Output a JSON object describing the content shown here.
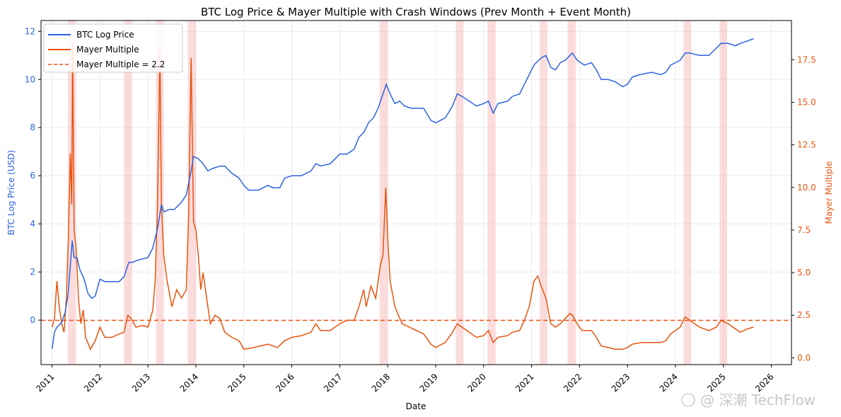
{
  "chart_data": {
    "type": "line",
    "title": "BTC Log Price & Mayer Multiple with Crash Windows (Prev Month + Event Month)",
    "xlabel": "Date",
    "ylabel_left": "BTC Log Price (USD)",
    "ylabel_right": "Mayer Multiple",
    "x_ticks": [
      "2011",
      "2012",
      "2013",
      "2014",
      "2015",
      "2016",
      "2017",
      "2018",
      "2019",
      "2020",
      "2021",
      "2022",
      "2023",
      "2024",
      "2025",
      "2026"
    ],
    "y_ticks_left": [
      "0",
      "2",
      "4",
      "6",
      "8",
      "10",
      "12"
    ],
    "y_ticks_right": [
      "0.0",
      "2.5",
      "5.0",
      "7.5",
      "10.0",
      "12.5",
      "15.0",
      "17.5"
    ],
    "xlim": [
      2010.77,
      2026.42
    ],
    "ylim_left": [
      -1.85,
      12.45
    ],
    "ylim_right": [
      -0.4,
      19.8
    ],
    "grid": true,
    "legend_position": "top-left",
    "colors": {
      "price": "#2c63e0",
      "mayer": "#e8540f",
      "threshold": "#e8540f",
      "crash_window": "#f4a6a6"
    },
    "legend": [
      {
        "label": "BTC Log Price",
        "style": "solid",
        "color": "#2c63e0"
      },
      {
        "label": "Mayer Multiple",
        "style": "solid",
        "color": "#e8540f"
      },
      {
        "label": "Mayer Multiple = 2.2",
        "style": "dashed",
        "color": "#e8540f"
      }
    ],
    "threshold_value": 2.2,
    "crash_windows": [
      [
        2011.33,
        2011.5
      ],
      [
        2012.5,
        2012.67
      ],
      [
        2013.17,
        2013.33
      ],
      [
        2013.83,
        2014.0
      ],
      [
        2017.83,
        2018.0
      ],
      [
        2019.42,
        2019.58
      ],
      [
        2020.08,
        2020.25
      ],
      [
        2021.17,
        2021.33
      ],
      [
        2021.75,
        2021.92
      ],
      [
        2024.17,
        2024.33
      ],
      [
        2024.92,
        2025.08
      ]
    ],
    "series": [
      {
        "name": "BTC Log Price",
        "axis": "left",
        "points": [
          [
            2011.0,
            -1.2
          ],
          [
            2011.05,
            -0.5
          ],
          [
            2011.1,
            -0.3
          ],
          [
            2011.2,
            -0.1
          ],
          [
            2011.27,
            0.3
          ],
          [
            2011.33,
            1.0
          ],
          [
            2011.37,
            2.0
          ],
          [
            2011.42,
            3.3
          ],
          [
            2011.46,
            2.6
          ],
          [
            2011.52,
            2.6
          ],
          [
            2011.58,
            2.1
          ],
          [
            2011.67,
            1.7
          ],
          [
            2011.75,
            1.1
          ],
          [
            2011.83,
            0.9
          ],
          [
            2011.9,
            1.0
          ],
          [
            2012.0,
            1.7
          ],
          [
            2012.1,
            1.6
          ],
          [
            2012.25,
            1.6
          ],
          [
            2012.4,
            1.6
          ],
          [
            2012.5,
            1.8
          ],
          [
            2012.6,
            2.4
          ],
          [
            2012.67,
            2.4
          ],
          [
            2012.8,
            2.5
          ],
          [
            2013.0,
            2.6
          ],
          [
            2013.1,
            3.0
          ],
          [
            2013.2,
            3.8
          ],
          [
            2013.28,
            4.8
          ],
          [
            2013.33,
            4.5
          ],
          [
            2013.45,
            4.6
          ],
          [
            2013.55,
            4.6
          ],
          [
            2013.7,
            4.9
          ],
          [
            2013.8,
            5.2
          ],
          [
            2013.9,
            6.2
          ],
          [
            2013.95,
            6.8
          ],
          [
            2014.05,
            6.7
          ],
          [
            2014.15,
            6.5
          ],
          [
            2014.25,
            6.2
          ],
          [
            2014.35,
            6.3
          ],
          [
            2014.5,
            6.4
          ],
          [
            2014.6,
            6.4
          ],
          [
            2014.75,
            6.1
          ],
          [
            2014.9,
            5.9
          ],
          [
            2015.0,
            5.6
          ],
          [
            2015.1,
            5.4
          ],
          [
            2015.3,
            5.4
          ],
          [
            2015.5,
            5.6
          ],
          [
            2015.6,
            5.5
          ],
          [
            2015.75,
            5.5
          ],
          [
            2015.85,
            5.9
          ],
          [
            2016.0,
            6.0
          ],
          [
            2016.2,
            6.0
          ],
          [
            2016.4,
            6.2
          ],
          [
            2016.5,
            6.5
          ],
          [
            2016.6,
            6.4
          ],
          [
            2016.8,
            6.5
          ],
          [
            2017.0,
            6.9
          ],
          [
            2017.15,
            6.9
          ],
          [
            2017.3,
            7.1
          ],
          [
            2017.4,
            7.6
          ],
          [
            2017.5,
            7.8
          ],
          [
            2017.6,
            8.2
          ],
          [
            2017.7,
            8.4
          ],
          [
            2017.8,
            8.8
          ],
          [
            2017.9,
            9.4
          ],
          [
            2017.97,
            9.8
          ],
          [
            2018.05,
            9.4
          ],
          [
            2018.15,
            9.0
          ],
          [
            2018.25,
            9.1
          ],
          [
            2018.35,
            8.9
          ],
          [
            2018.5,
            8.8
          ],
          [
            2018.6,
            8.8
          ],
          [
            2018.75,
            8.8
          ],
          [
            2018.9,
            8.3
          ],
          [
            2019.0,
            8.2
          ],
          [
            2019.2,
            8.4
          ],
          [
            2019.35,
            8.9
          ],
          [
            2019.45,
            9.4
          ],
          [
            2019.55,
            9.3
          ],
          [
            2019.7,
            9.1
          ],
          [
            2019.85,
            8.9
          ],
          [
            2020.0,
            9.0
          ],
          [
            2020.1,
            9.1
          ],
          [
            2020.2,
            8.6
          ],
          [
            2020.3,
            9.0
          ],
          [
            2020.5,
            9.1
          ],
          [
            2020.6,
            9.3
          ],
          [
            2020.75,
            9.4
          ],
          [
            2020.85,
            9.8
          ],
          [
            2020.95,
            10.2
          ],
          [
            2021.05,
            10.6
          ],
          [
            2021.2,
            10.9
          ],
          [
            2021.3,
            11.0
          ],
          [
            2021.4,
            10.5
          ],
          [
            2021.5,
            10.4
          ],
          [
            2021.6,
            10.7
          ],
          [
            2021.7,
            10.8
          ],
          [
            2021.8,
            11.0
          ],
          [
            2021.85,
            11.1
          ],
          [
            2021.95,
            10.8
          ],
          [
            2022.1,
            10.6
          ],
          [
            2022.25,
            10.7
          ],
          [
            2022.35,
            10.4
          ],
          [
            2022.45,
            10.0
          ],
          [
            2022.6,
            10.0
          ],
          [
            2022.75,
            9.9
          ],
          [
            2022.9,
            9.7
          ],
          [
            2023.0,
            9.8
          ],
          [
            2023.1,
            10.1
          ],
          [
            2023.25,
            10.2
          ],
          [
            2023.5,
            10.3
          ],
          [
            2023.7,
            10.2
          ],
          [
            2023.8,
            10.3
          ],
          [
            2023.9,
            10.6
          ],
          [
            2024.0,
            10.7
          ],
          [
            2024.1,
            10.8
          ],
          [
            2024.2,
            11.1
          ],
          [
            2024.3,
            11.1
          ],
          [
            2024.5,
            11.0
          ],
          [
            2024.7,
            11.0
          ],
          [
            2024.85,
            11.3
          ],
          [
            2024.95,
            11.5
          ],
          [
            2025.1,
            11.5
          ],
          [
            2025.25,
            11.4
          ],
          [
            2025.35,
            11.5
          ],
          [
            2025.5,
            11.6
          ],
          [
            2025.63,
            11.7
          ]
        ]
      },
      {
        "name": "Mayer Multiple",
        "axis": "right",
        "points": [
          [
            2011.0,
            1.8
          ],
          [
            2011.05,
            2.3
          ],
          [
            2011.1,
            4.5
          ],
          [
            2011.15,
            3.0
          ],
          [
            2011.2,
            2.0
          ],
          [
            2011.25,
            1.5
          ],
          [
            2011.3,
            3.5
          ],
          [
            2011.34,
            7.0
          ],
          [
            2011.38,
            12.0
          ],
          [
            2011.41,
            9.0
          ],
          [
            2011.43,
            18.5
          ],
          [
            2011.46,
            7.5
          ],
          [
            2011.5,
            6.5
          ],
          [
            2011.55,
            3.5
          ],
          [
            2011.6,
            2.0
          ],
          [
            2011.65,
            2.8
          ],
          [
            2011.7,
            1.2
          ],
          [
            2011.8,
            0.5
          ],
          [
            2011.9,
            1.0
          ],
          [
            2012.0,
            1.8
          ],
          [
            2012.1,
            1.2
          ],
          [
            2012.25,
            1.2
          ],
          [
            2012.4,
            1.4
          ],
          [
            2012.5,
            1.5
          ],
          [
            2012.58,
            2.5
          ],
          [
            2012.65,
            2.3
          ],
          [
            2012.75,
            1.8
          ],
          [
            2012.9,
            1.9
          ],
          [
            2013.0,
            1.8
          ],
          [
            2013.1,
            2.8
          ],
          [
            2013.15,
            4.5
          ],
          [
            2013.2,
            9.0
          ],
          [
            2013.25,
            18.0
          ],
          [
            2013.28,
            9.0
          ],
          [
            2013.33,
            6.0
          ],
          [
            2013.4,
            4.5
          ],
          [
            2013.5,
            3.0
          ],
          [
            2013.6,
            4.0
          ],
          [
            2013.7,
            3.5
          ],
          [
            2013.8,
            4.0
          ],
          [
            2013.85,
            8.5
          ],
          [
            2013.9,
            17.6
          ],
          [
            2013.95,
            8.0
          ],
          [
            2014.0,
            7.5
          ],
          [
            2014.05,
            6.0
          ],
          [
            2014.1,
            4.0
          ],
          [
            2014.15,
            5.0
          ],
          [
            2014.25,
            3.0
          ],
          [
            2014.3,
            2.0
          ],
          [
            2014.4,
            2.5
          ],
          [
            2014.5,
            2.3
          ],
          [
            2014.6,
            1.5
          ],
          [
            2014.75,
            1.2
          ],
          [
            2014.9,
            1.0
          ],
          [
            2015.0,
            0.5
          ],
          [
            2015.2,
            0.6
          ],
          [
            2015.5,
            0.8
          ],
          [
            2015.7,
            0.6
          ],
          [
            2015.85,
            1.0
          ],
          [
            2016.0,
            1.2
          ],
          [
            2016.2,
            1.3
          ],
          [
            2016.4,
            1.5
          ],
          [
            2016.5,
            2.0
          ],
          [
            2016.6,
            1.6
          ],
          [
            2016.8,
            1.6
          ],
          [
            2017.0,
            2.0
          ],
          [
            2017.15,
            2.2
          ],
          [
            2017.3,
            2.2
          ],
          [
            2017.4,
            3.0
          ],
          [
            2017.5,
            4.0
          ],
          [
            2017.55,
            3.0
          ],
          [
            2017.65,
            4.2
          ],
          [
            2017.75,
            3.5
          ],
          [
            2017.85,
            5.5
          ],
          [
            2017.9,
            6.0
          ],
          [
            2017.96,
            10.0
          ],
          [
            2018.0,
            7.0
          ],
          [
            2018.05,
            4.5
          ],
          [
            2018.15,
            3.0
          ],
          [
            2018.3,
            2.0
          ],
          [
            2018.45,
            1.8
          ],
          [
            2018.6,
            1.6
          ],
          [
            2018.75,
            1.4
          ],
          [
            2018.9,
            0.8
          ],
          [
            2019.0,
            0.6
          ],
          [
            2019.2,
            0.9
          ],
          [
            2019.35,
            1.5
          ],
          [
            2019.45,
            2.0
          ],
          [
            2019.55,
            1.8
          ],
          [
            2019.7,
            1.5
          ],
          [
            2019.85,
            1.2
          ],
          [
            2020.0,
            1.3
          ],
          [
            2020.1,
            1.6
          ],
          [
            2020.2,
            0.9
          ],
          [
            2020.3,
            1.2
          ],
          [
            2020.5,
            1.3
          ],
          [
            2020.6,
            1.5
          ],
          [
            2020.75,
            1.6
          ],
          [
            2020.85,
            2.2
          ],
          [
            2020.95,
            3.0
          ],
          [
            2021.05,
            4.5
          ],
          [
            2021.13,
            4.8
          ],
          [
            2021.2,
            4.2
          ],
          [
            2021.3,
            3.5
          ],
          [
            2021.4,
            2.0
          ],
          [
            2021.5,
            1.8
          ],
          [
            2021.6,
            2.0
          ],
          [
            2021.7,
            2.3
          ],
          [
            2021.8,
            2.6
          ],
          [
            2021.85,
            2.5
          ],
          [
            2021.95,
            2.0
          ],
          [
            2022.05,
            1.6
          ],
          [
            2022.25,
            1.6
          ],
          [
            2022.35,
            1.2
          ],
          [
            2022.45,
            0.7
          ],
          [
            2022.6,
            0.6
          ],
          [
            2022.75,
            0.5
          ],
          [
            2022.9,
            0.5
          ],
          [
            2023.0,
            0.6
          ],
          [
            2023.1,
            0.8
          ],
          [
            2023.3,
            0.9
          ],
          [
            2023.5,
            0.9
          ],
          [
            2023.7,
            0.9
          ],
          [
            2023.8,
            1.0
          ],
          [
            2023.9,
            1.4
          ],
          [
            2024.0,
            1.6
          ],
          [
            2024.1,
            1.8
          ],
          [
            2024.2,
            2.4
          ],
          [
            2024.3,
            2.2
          ],
          [
            2024.5,
            1.8
          ],
          [
            2024.7,
            1.6
          ],
          [
            2024.85,
            1.8
          ],
          [
            2024.95,
            2.2
          ],
          [
            2025.1,
            2.0
          ],
          [
            2025.25,
            1.7
          ],
          [
            2025.35,
            1.5
          ],
          [
            2025.5,
            1.7
          ],
          [
            2025.63,
            1.8
          ]
        ]
      }
    ]
  },
  "watermark": "@ 深潮 TechFlow"
}
